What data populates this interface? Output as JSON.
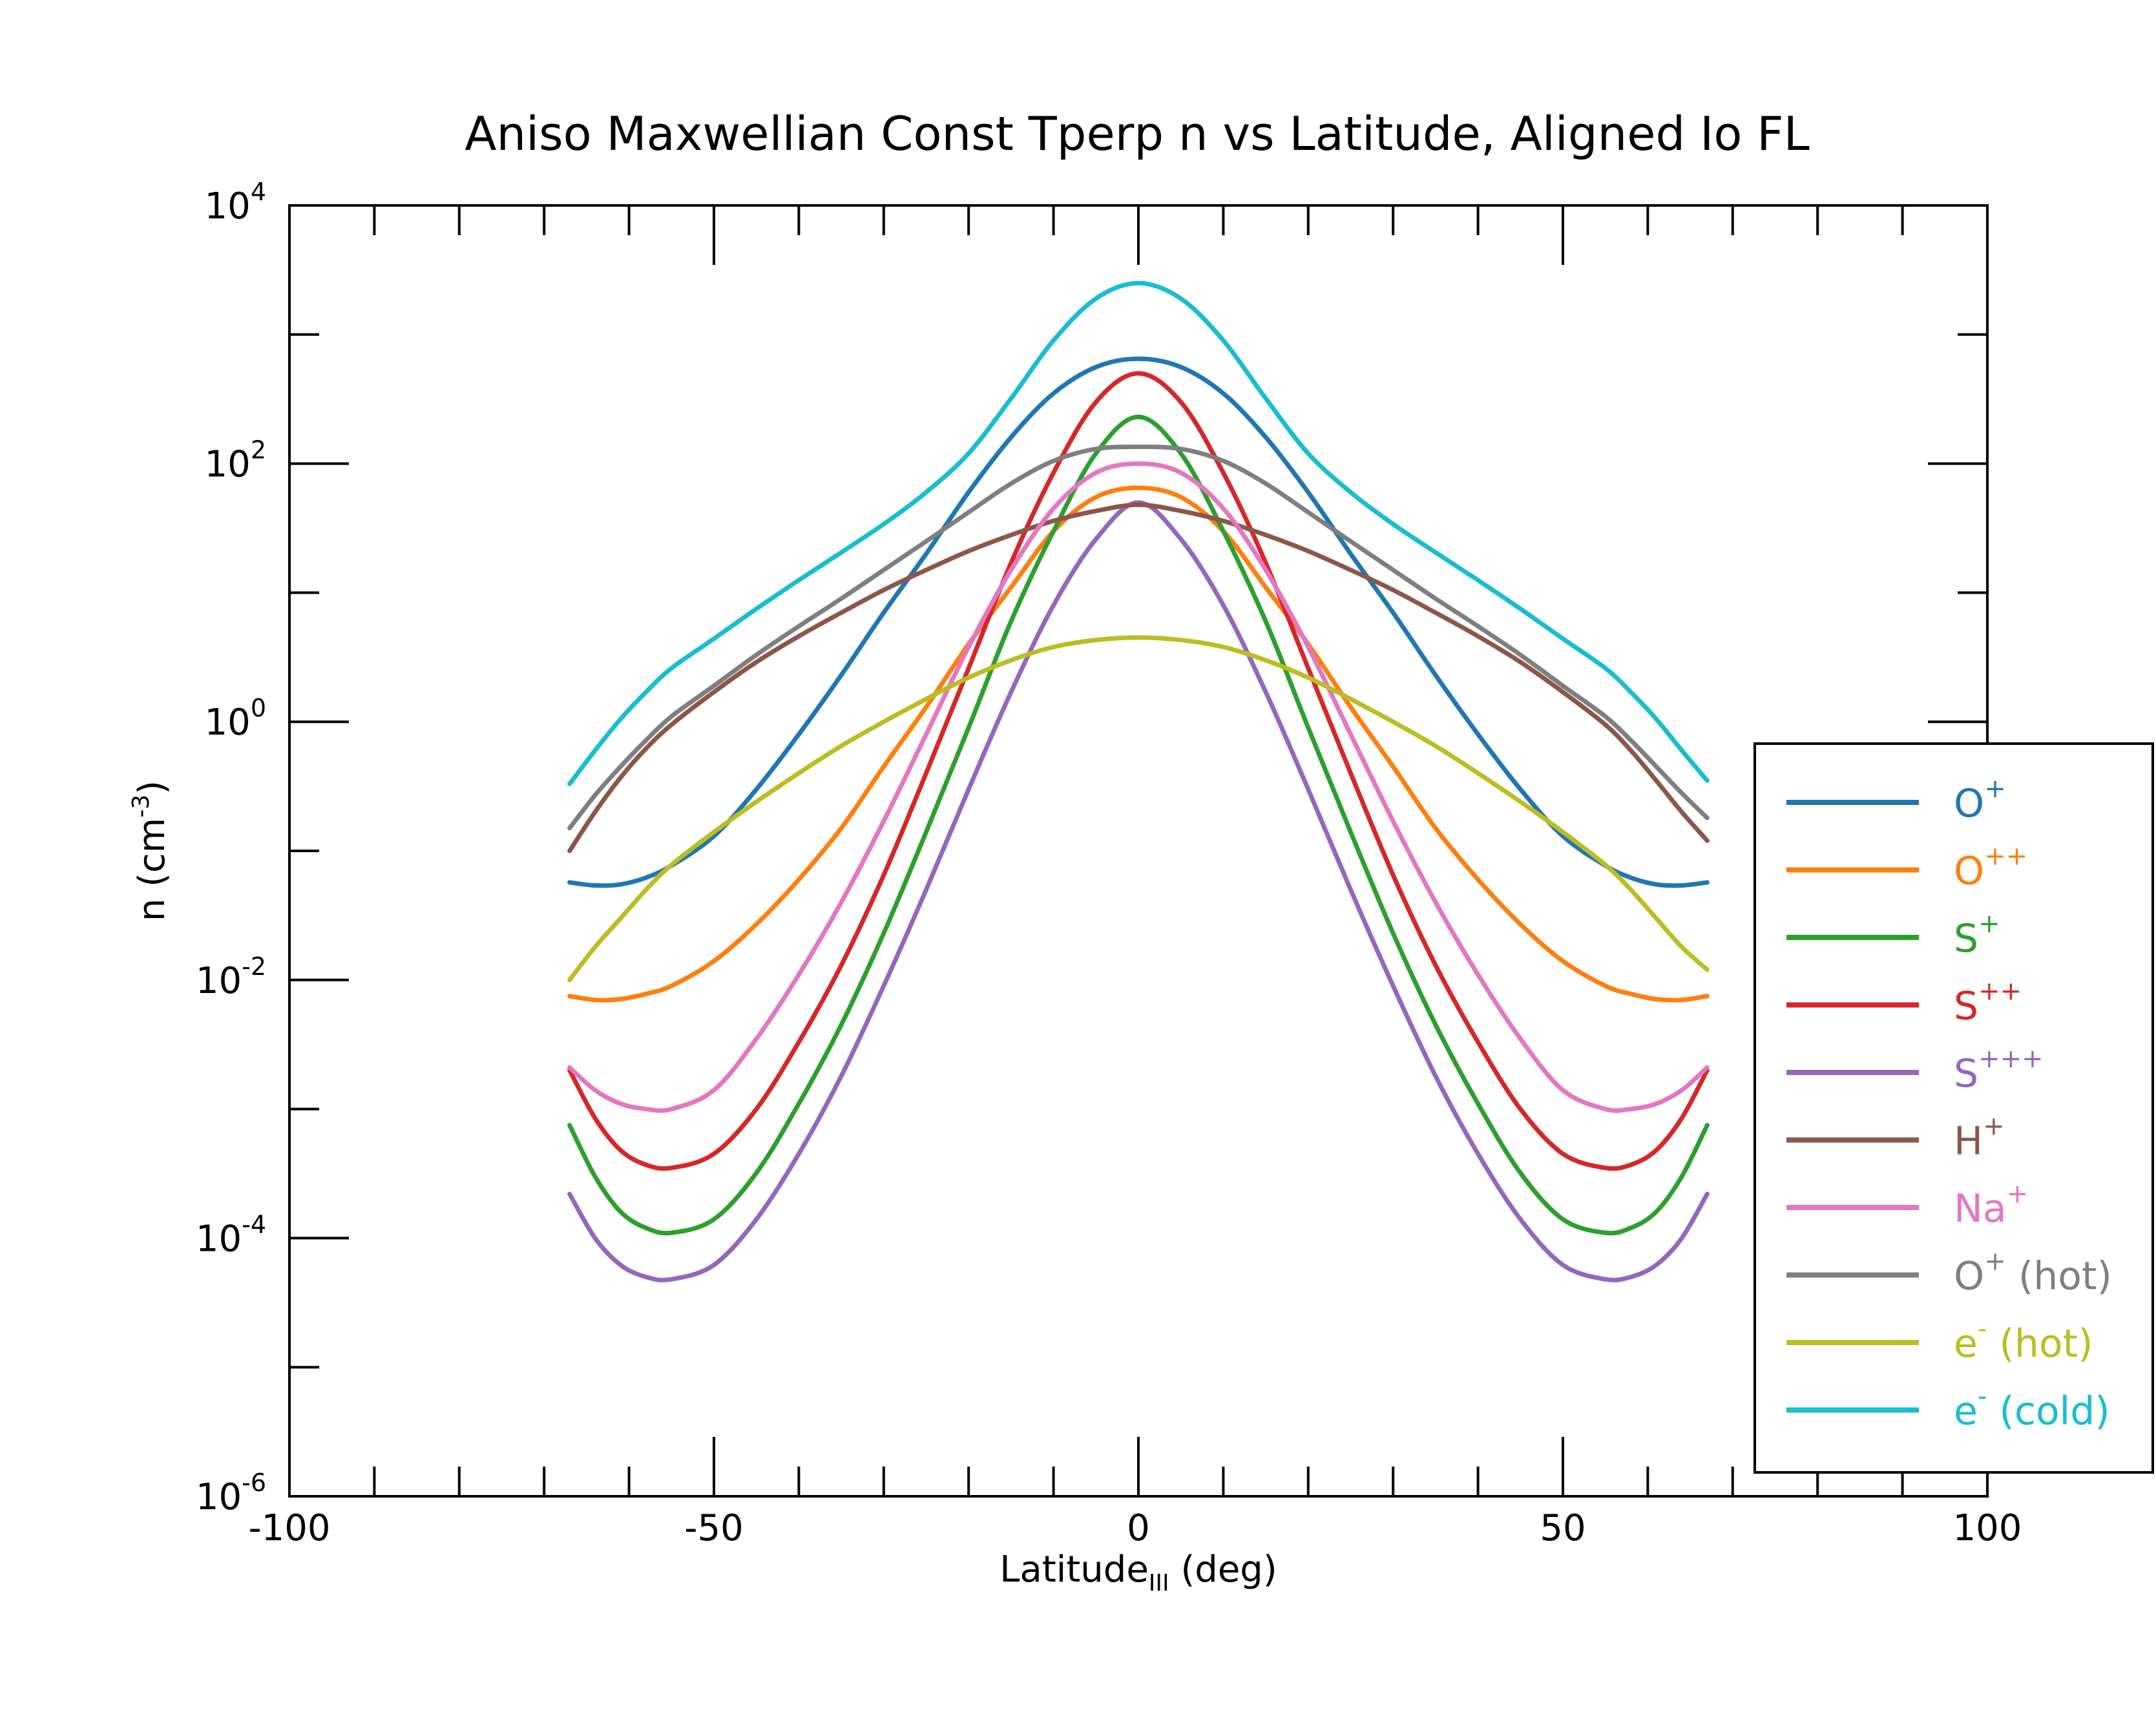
{
  "chart_data": {
    "type": "line",
    "title": "Aniso Maxwellian Const Tperp n vs Latitude, Aligned Io FL",
    "xlabel": "Latitude",
    "xlabel_sub": "III",
    "xlabel_suffix": " (deg)",
    "ylabel": "n (cm",
    "ylabel_sup": "-3",
    "ylabel_suffix": ")",
    "xlim": [
      -100,
      100
    ],
    "ylim": [
      1e-06,
      10000
    ],
    "yscale": "log",
    "grid": false,
    "legend_position": "right",
    "x_ticks": [
      {
        "value": -100,
        "label": "-100"
      },
      {
        "value": -50,
        "label": "-50"
      },
      {
        "value": 0,
        "label": "0"
      },
      {
        "value": 50,
        "label": "50"
      },
      {
        "value": 100,
        "label": "100"
      }
    ],
    "y_ticks": [
      {
        "value": 1e-06,
        "base": "10",
        "exp": "-6"
      },
      {
        "value": 0.0001,
        "base": "10",
        "exp": "-4"
      },
      {
        "value": 0.01,
        "base": "10",
        "exp": "-2"
      },
      {
        "value": 1,
        "base": "10",
        "exp": "0"
      },
      {
        "value": 100,
        "base": "10",
        "exp": "2"
      },
      {
        "value": 10000,
        "base": "10",
        "exp": "4"
      }
    ],
    "series": [
      {
        "name": "O",
        "sup": "+",
        "suffix": "",
        "color": "#1f77b4",
        "x": [
          -67,
          -64,
          -61,
          -58,
          -55,
          -50,
          -45,
          -40,
          -35,
          -30,
          -25,
          -20,
          -15,
          -10,
          -5,
          0,
          5,
          10,
          15,
          20,
          25,
          30,
          35,
          40,
          45,
          50,
          55,
          58,
          61,
          64,
          67
        ],
        "y": [
          0.057,
          0.054,
          0.055,
          0.062,
          0.077,
          0.13,
          0.3,
          0.8,
          2.3,
          7,
          20,
          60,
          160,
          350,
          560,
          650,
          560,
          350,
          160,
          60,
          20,
          7,
          2.3,
          0.8,
          0.3,
          0.13,
          0.077,
          0.062,
          0.055,
          0.054,
          0.057
        ]
      },
      {
        "name": "O",
        "sup": "++",
        "suffix": "",
        "color": "#ff7f0e",
        "x": [
          -67,
          -64,
          -61,
          -58,
          -55,
          -50,
          -45,
          -40,
          -35,
          -30,
          -25,
          -20,
          -15,
          -10,
          -5,
          0,
          5,
          10,
          15,
          20,
          25,
          30,
          35,
          40,
          45,
          50,
          55,
          58,
          61,
          64,
          67
        ],
        "y": [
          0.0075,
          0.007,
          0.0071,
          0.0078,
          0.009,
          0.014,
          0.027,
          0.06,
          0.15,
          0.45,
          1.3,
          4,
          11,
          30,
          55,
          65,
          55,
          30,
          11,
          4,
          1.3,
          0.45,
          0.15,
          0.06,
          0.027,
          0.014,
          0.009,
          0.0078,
          0.0071,
          0.007,
          0.0075
        ]
      },
      {
        "name": "S",
        "sup": "+",
        "suffix": "",
        "color": "#2ca02c",
        "x": [
          -67,
          -64,
          -61,
          -58,
          -55,
          -50,
          -45,
          -40,
          -35,
          -30,
          -25,
          -20,
          -15,
          -10,
          -5,
          0,
          5,
          10,
          15,
          20,
          25,
          30,
          35,
          40,
          45,
          50,
          55,
          58,
          61,
          64,
          67
        ],
        "y": [
          0.00075,
          0.0003,
          0.00016,
          0.00012,
          0.00011,
          0.00014,
          0.00032,
          0.0011,
          0.0045,
          0.023,
          0.14,
          0.9,
          6,
          30,
          120,
          230,
          120,
          30,
          6,
          0.9,
          0.14,
          0.023,
          0.0045,
          0.0011,
          0.00032,
          0.00014,
          0.00011,
          0.00012,
          0.00016,
          0.0003,
          0.00075
        ]
      },
      {
        "name": "S",
        "sup": "++",
        "suffix": "",
        "color": "#d62728",
        "x": [
          -67,
          -64,
          -61,
          -58,
          -55,
          -50,
          -45,
          -40,
          -35,
          -30,
          -25,
          -20,
          -15,
          -10,
          -5,
          0,
          5,
          10,
          15,
          20,
          25,
          30,
          35,
          40,
          45,
          50,
          55,
          58,
          61,
          64,
          67
        ],
        "y": [
          0.002,
          0.00085,
          0.00048,
          0.00037,
          0.00035,
          0.00045,
          0.001,
          0.0033,
          0.013,
          0.065,
          0.4,
          2.6,
          17,
          85,
          300,
          500,
          300,
          85,
          17,
          2.6,
          0.4,
          0.065,
          0.013,
          0.0033,
          0.001,
          0.00045,
          0.00035,
          0.00037,
          0.00048,
          0.00085,
          0.002
        ]
      },
      {
        "name": "S",
        "sup": "+++",
        "suffix": "",
        "color": "#9467bd",
        "x": [
          -67,
          -64,
          -61,
          -58,
          -55,
          -50,
          -45,
          -40,
          -35,
          -30,
          -25,
          -20,
          -15,
          -10,
          -5,
          0,
          5,
          10,
          15,
          20,
          25,
          30,
          35,
          40,
          45,
          50,
          55,
          58,
          61,
          64,
          67
        ],
        "y": [
          0.00022,
          0.0001,
          6.2e-05,
          5e-05,
          4.8e-05,
          6.2e-05,
          0.00014,
          0.00045,
          0.0018,
          0.009,
          0.05,
          0.3,
          1.7,
          8,
          26,
          50,
          26,
          8,
          1.7,
          0.3,
          0.05,
          0.009,
          0.0018,
          0.00045,
          0.00014,
          6.2e-05,
          4.8e-05,
          5e-05,
          6.2e-05,
          0.0001,
          0.00022
        ]
      },
      {
        "name": "H",
        "sup": "+",
        "suffix": "",
        "color": "#8c564b",
        "x": [
          -67,
          -64,
          -61,
          -58,
          -55,
          -50,
          -45,
          -40,
          -35,
          -30,
          -25,
          -20,
          -15,
          -10,
          -5,
          0,
          5,
          10,
          15,
          20,
          25,
          30,
          35,
          40,
          45,
          50,
          55,
          58,
          61,
          64,
          67
        ],
        "y": [
          0.1,
          0.2,
          0.37,
          0.62,
          0.95,
          1.7,
          2.9,
          4.6,
          7,
          10.5,
          15,
          21,
          28,
          36,
          43,
          48,
          43,
          36,
          28,
          21,
          15,
          10.5,
          7,
          4.6,
          2.9,
          1.7,
          0.95,
          0.6,
          0.35,
          0.2,
          0.12
        ]
      },
      {
        "name": "Na",
        "sup": "+",
        "suffix": "",
        "color": "#e377c2",
        "x": [
          -67,
          -64,
          -61,
          -58,
          -55,
          -50,
          -45,
          -40,
          -35,
          -30,
          -25,
          -20,
          -15,
          -10,
          -5,
          0,
          5,
          10,
          15,
          20,
          25,
          30,
          35,
          40,
          45,
          50,
          55,
          58,
          61,
          64,
          67
        ],
        "y": [
          0.0021,
          0.0014,
          0.0011,
          0.001,
          0.001,
          0.0014,
          0.0035,
          0.011,
          0.04,
          0.17,
          0.8,
          3.8,
          15,
          45,
          85,
          100,
          85,
          45,
          15,
          3.8,
          0.8,
          0.17,
          0.04,
          0.011,
          0.0035,
          0.0014,
          0.001,
          0.001,
          0.0011,
          0.0014,
          0.0021
        ]
      },
      {
        "name": "O",
        "sup": "+",
        "suffix": " (hot)",
        "color": "#7f7f7f",
        "x": [
          -67,
          -64,
          -61,
          -58,
          -55,
          -50,
          -45,
          -40,
          -35,
          -30,
          -25,
          -20,
          -15,
          -10,
          -5,
          0,
          5,
          10,
          15,
          20,
          25,
          30,
          35,
          40,
          45,
          50,
          55,
          58,
          61,
          64,
          67
        ],
        "y": [
          0.15,
          0.27,
          0.45,
          0.72,
          1.1,
          1.9,
          3.3,
          5.5,
          9,
          15,
          25,
          42,
          70,
          105,
          130,
          135,
          130,
          105,
          70,
          42,
          25,
          15,
          9,
          5.5,
          3.3,
          1.9,
          1.1,
          0.72,
          0.45,
          0.28,
          0.18
        ]
      },
      {
        "name": "e",
        "sup": "-",
        "suffix": " (hot)",
        "color": "#bcbd22",
        "x": [
          -67,
          -64,
          -61,
          -58,
          -55,
          -50,
          -45,
          -40,
          -35,
          -30,
          -25,
          -20,
          -15,
          -10,
          -5,
          0,
          5,
          10,
          15,
          20,
          25,
          30,
          35,
          40,
          45,
          50,
          55,
          58,
          61,
          64,
          67
        ],
        "y": [
          0.01,
          0.018,
          0.03,
          0.05,
          0.078,
          0.14,
          0.24,
          0.4,
          0.65,
          1,
          1.5,
          2.2,
          3,
          3.8,
          4.3,
          4.5,
          4.3,
          3.8,
          3,
          2.2,
          1.5,
          1,
          0.65,
          0.4,
          0.24,
          0.14,
          0.078,
          0.05,
          0.03,
          0.018,
          0.012
        ]
      },
      {
        "name": "e",
        "sup": "-",
        "suffix": " (cold)",
        "color": "#17becf",
        "x": [
          -67,
          -64,
          -61,
          -58,
          -55,
          -50,
          -45,
          -40,
          -35,
          -30,
          -25,
          -20,
          -15,
          -10,
          -5,
          0,
          5,
          10,
          15,
          20,
          25,
          30,
          35,
          40,
          45,
          50,
          55,
          58,
          61,
          64,
          67
        ],
        "y": [
          0.33,
          0.6,
          1.05,
          1.7,
          2.6,
          4.4,
          7.5,
          12.5,
          20.5,
          34,
          60,
          120,
          320,
          900,
          1900,
          2500,
          1900,
          900,
          320,
          120,
          60,
          34,
          20.5,
          12.5,
          7.5,
          4.4,
          2.6,
          1.7,
          1.05,
          0.6,
          0.35
        ]
      }
    ]
  }
}
